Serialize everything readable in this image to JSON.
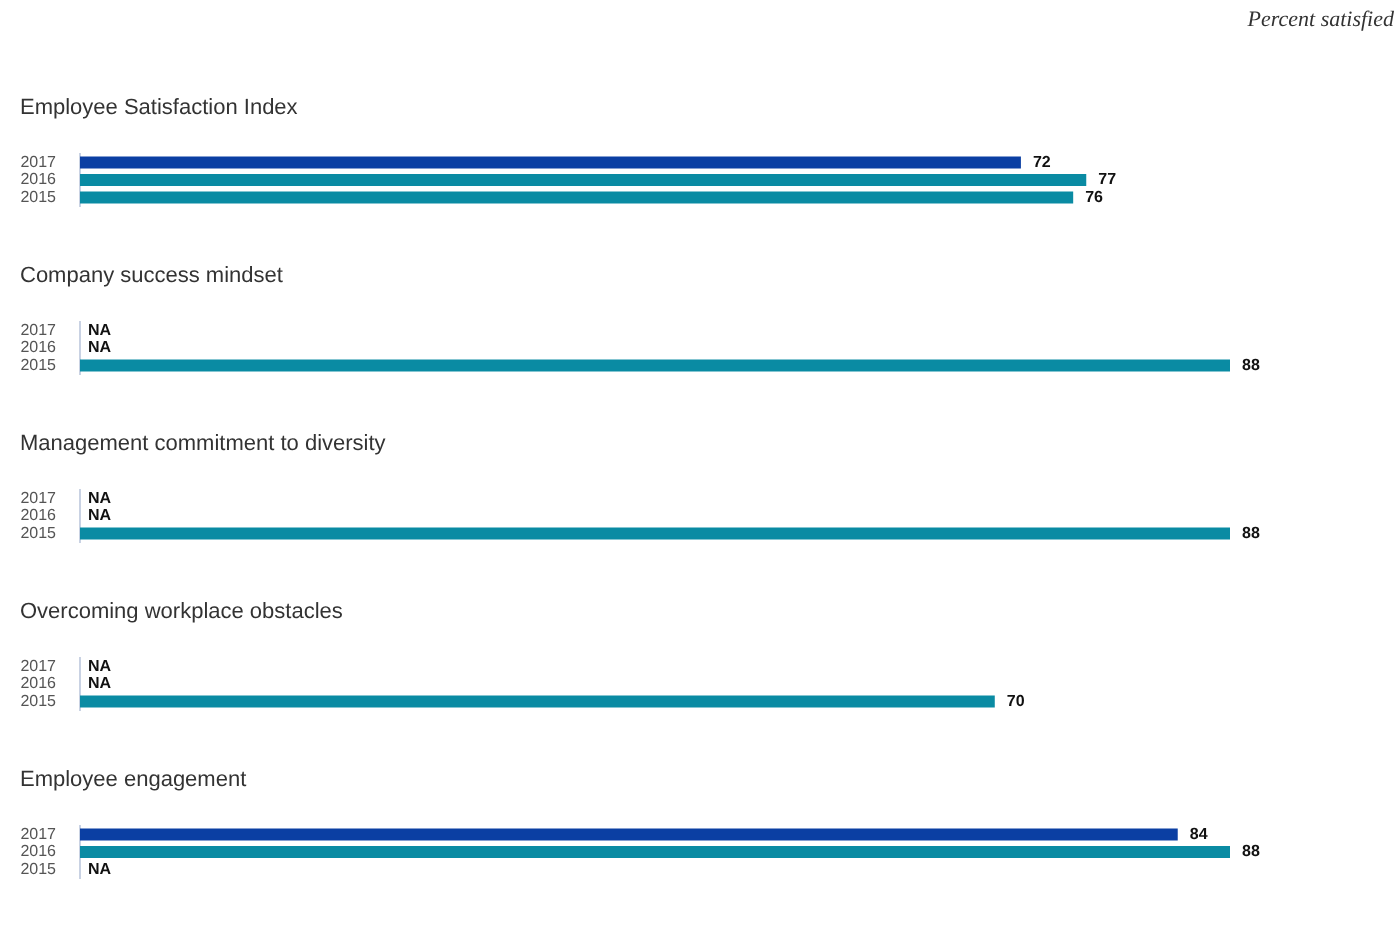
{
  "chart_data": [
    {
      "type": "bar",
      "orientation": "horizontal",
      "title": "Employee Satisfaction Index",
      "annotations": [
        "Percent satisfied"
      ],
      "categories": [
        "2017",
        "2016",
        "2015"
      ],
      "values": [
        72,
        77,
        76
      ],
      "colors": [
        "#0b3fa3",
        "#0a8ba3",
        "#0a8ba3"
      ],
      "value_labels": [
        "72",
        "77",
        "76"
      ],
      "tick_labels": "y"
    },
    {
      "type": "bar",
      "orientation": "horizontal",
      "title": "Company success mindset",
      "categories": [
        "2017",
        "2016",
        "2015"
      ],
      "values": [
        null,
        null,
        88
      ],
      "colors": [
        "#0b3fa3",
        "#0a8ba3",
        "#0a8ba3"
      ],
      "value_labels": [
        "NA",
        "NA",
        "88"
      ],
      "tick_labels": "y"
    },
    {
      "type": "bar",
      "orientation": "horizontal",
      "title": "Management commitment to diversity",
      "categories": [
        "2017",
        "2016",
        "2015"
      ],
      "values": [
        null,
        null,
        88
      ],
      "colors": [
        "#0b3fa3",
        "#0a8ba3",
        "#0a8ba3"
      ],
      "value_labels": [
        "NA",
        "NA",
        "88"
      ],
      "tick_labels": "y"
    },
    {
      "type": "bar",
      "orientation": "horizontal",
      "title": "Overcoming workplace obstacles",
      "categories": [
        "2017",
        "2016",
        "2015"
      ],
      "values": [
        null,
        null,
        70
      ],
      "colors": [
        "#0b3fa3",
        "#0a8ba3",
        "#0a8ba3"
      ],
      "value_labels": [
        "NA",
        "NA",
        "70"
      ],
      "tick_labels": "y"
    },
    {
      "type": "bar",
      "orientation": "horizontal",
      "title": "Employee engagement",
      "categories": [
        "2017",
        "2016",
        "2015"
      ],
      "values": [
        84,
        88,
        null
      ],
      "colors": [
        "#0b3fa3",
        "#0a8ba3",
        "#0a8ba3"
      ],
      "value_labels": [
        "84",
        "88",
        "NA"
      ],
      "tick_labels": "y"
    }
  ]
}
